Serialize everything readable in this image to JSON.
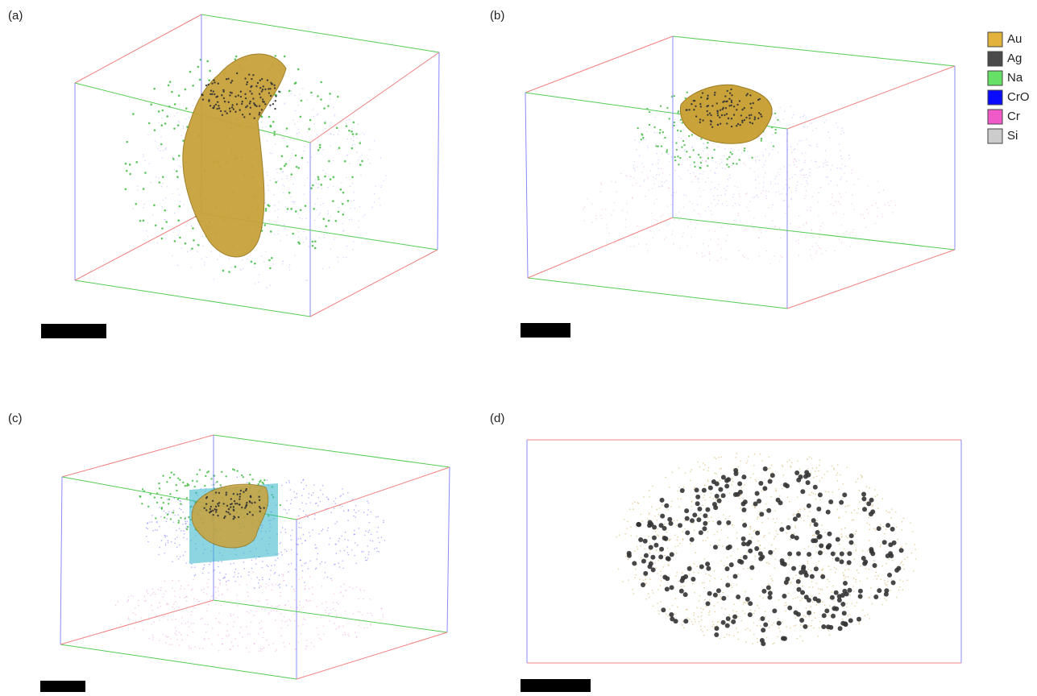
{
  "panels": [
    {
      "label": "(a)"
    },
    {
      "label": "(b)"
    },
    {
      "label": "(c)"
    },
    {
      "label": "(d)"
    }
  ],
  "legend": [
    {
      "label": "Au",
      "color": "#e3b23c"
    },
    {
      "label": "Ag",
      "color": "#4a4a4a"
    },
    {
      "label": "Na",
      "color": "#66e066"
    },
    {
      "label": "CrO",
      "color": "#0a0aff"
    },
    {
      "label": "Cr",
      "color": "#f05ac8"
    },
    {
      "label": "Si",
      "color": "#cccccc"
    }
  ]
}
